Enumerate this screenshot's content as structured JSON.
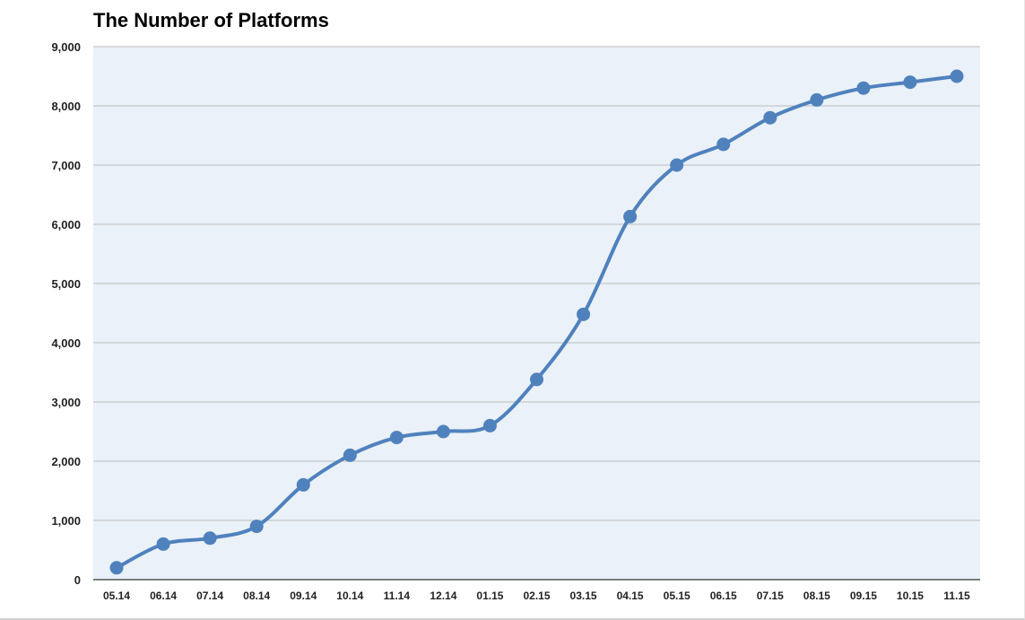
{
  "chart_data": {
    "type": "line",
    "title": "The Number of Platforms",
    "xlabel": "",
    "ylabel": "",
    "categories": [
      "05.14",
      "06.14",
      "07.14",
      "08.14",
      "09.14",
      "10.14",
      "11.14",
      "12.14",
      "01.15",
      "02.15",
      "03.15",
      "04.15",
      "05.15",
      "06.15",
      "07.15",
      "08.15",
      "09.15",
      "10.15",
      "11.15"
    ],
    "series": [
      {
        "values": [
          200,
          600,
          700,
          900,
          1600,
          2100,
          2400,
          2500,
          2600,
          3380,
          4480,
          6130,
          7000,
          7350,
          7800,
          8100,
          8300,
          8400,
          8500
        ]
      }
    ],
    "ylim": [
      0,
      9000
    ],
    "yticks": [
      0,
      1000,
      2000,
      3000,
      4000,
      5000,
      6000,
      7000,
      8000,
      9000
    ],
    "ytick_labels": [
      "0",
      "1,000",
      "2,000",
      "3,000",
      "4,000",
      "5,000",
      "6,000",
      "7,000",
      "8,000",
      "9,000"
    ],
    "grid": true,
    "legend": "none",
    "colors": {
      "line": "#4f81bd",
      "plot_bg": "#eaf1f8",
      "grid": "#bdbdbd"
    }
  }
}
